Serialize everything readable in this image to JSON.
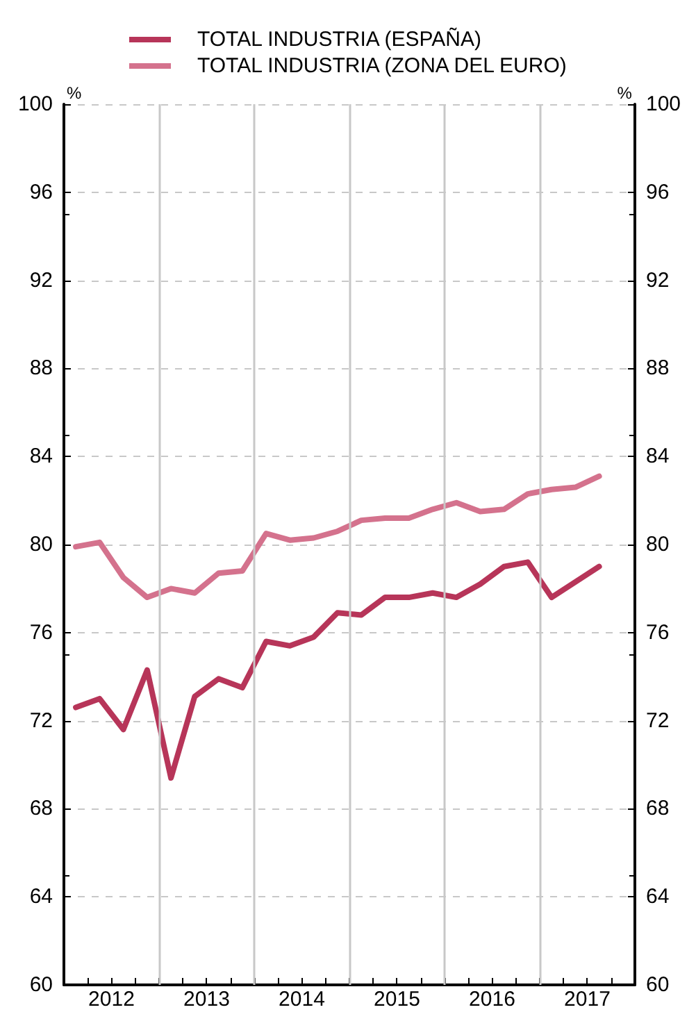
{
  "chart_data": {
    "type": "line",
    "x": [
      2012.125,
      2012.375,
      2012.625,
      2012.875,
      2013.125,
      2013.375,
      2013.625,
      2013.875,
      2014.125,
      2014.375,
      2014.625,
      2014.875,
      2015.125,
      2015.375,
      2015.625,
      2015.875,
      2016.125,
      2016.375,
      2016.625,
      2016.875,
      2017.125,
      2017.375,
      2017.625
    ],
    "series": [
      {
        "name": "TOTAL INDUSTRIA (ESPAÑA)",
        "color": "#b73559",
        "values": [
          72.6,
          73.0,
          71.6,
          74.3,
          69.4,
          73.1,
          73.9,
          73.5,
          75.6,
          75.4,
          75.8,
          76.9,
          76.8,
          77.6,
          77.6,
          77.8,
          77.6,
          78.2,
          79.0,
          79.2,
          77.6,
          78.3,
          79.0
        ]
      },
      {
        "name": "TOTAL INDUSTRIA (ZONA DEL EURO)",
        "color": "#d4728d",
        "values": [
          79.9,
          80.1,
          78.5,
          77.6,
          78.0,
          77.8,
          78.7,
          78.8,
          80.5,
          80.2,
          80.3,
          80.6,
          81.1,
          81.2,
          81.2,
          81.6,
          81.9,
          81.5,
          81.6,
          82.3,
          82.5,
          82.6,
          83.1
        ]
      }
    ],
    "ylabel": "%",
    "y2label": "%",
    "xlim": [
      2012,
      2018
    ],
    "xticks": [
      {
        "value": 2012,
        "label": null
      },
      {
        "value": 2012.25,
        "label": null
      },
      {
        "value": 2012.5,
        "label": "2012"
      },
      {
        "value": 2012.75,
        "label": null
      },
      {
        "value": 2013,
        "label": null
      },
      {
        "value": 2013.25,
        "label": null
      },
      {
        "value": 2013.5,
        "label": "2013"
      },
      {
        "value": 2013.75,
        "label": null
      },
      {
        "value": 2014,
        "label": null
      },
      {
        "value": 2014.25,
        "label": null
      },
      {
        "value": 2014.5,
        "label": "2014"
      },
      {
        "value": 2014.75,
        "label": null
      },
      {
        "value": 2015,
        "label": null
      },
      {
        "value": 2015.25,
        "label": null
      },
      {
        "value": 2015.5,
        "label": "2015"
      },
      {
        "value": 2015.75,
        "label": null
      },
      {
        "value": 2016,
        "label": null
      },
      {
        "value": 2016.25,
        "label": null
      },
      {
        "value": 2016.5,
        "label": "2016"
      },
      {
        "value": 2016.75,
        "label": null
      },
      {
        "value": 2017,
        "label": null
      },
      {
        "value": 2017.25,
        "label": null
      },
      {
        "value": 2017.5,
        "label": "2017"
      },
      {
        "value": 2017.75,
        "label": null
      },
      {
        "value": 2018,
        "label": null
      }
    ],
    "ylim": [
      60,
      100
    ],
    "yticks": [
      60,
      64,
      68,
      72,
      76,
      80,
      84,
      88,
      92,
      96,
      100
    ],
    "y2lim": [
      60,
      100
    ],
    "y2ticks": [
      60,
      64,
      68,
      72,
      76,
      80,
      84,
      88,
      92,
      96,
      100
    ],
    "ref_lines": [
      {
        "axis": "x",
        "value": 2013,
        "color": "#c8c8c8"
      },
      {
        "axis": "x",
        "value": 2014,
        "color": "#c8c8c8"
      },
      {
        "axis": "x",
        "value": 2015,
        "color": "#c8c8c8"
      },
      {
        "axis": "x",
        "value": 2016,
        "color": "#c8c8c8"
      },
      {
        "axis": "x",
        "value": 2017,
        "color": "#c8c8c8"
      }
    ],
    "grid": "y",
    "legend": "top",
    "marker": "none",
    "line_style": "solid"
  }
}
